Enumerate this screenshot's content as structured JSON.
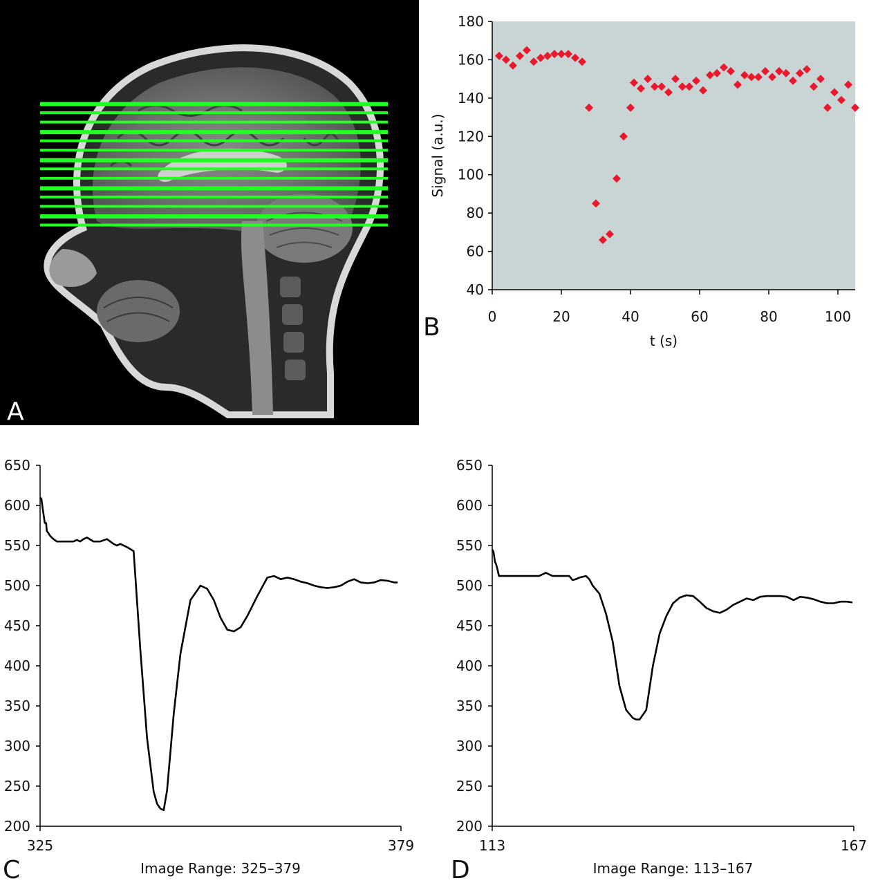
{
  "panels": {
    "a": "A",
    "b": "B",
    "c": "C",
    "d": "D"
  },
  "mri": {
    "image": "sagittal-head-mri",
    "slice_color": "#22ff22",
    "slice_count": 14
  },
  "colors": {
    "plot_bg": "#c9d5d5",
    "marker": "#e8192c",
    "line": "#000000"
  },
  "chart_data": [
    {
      "type": "scatter",
      "panel": "B",
      "xlabel": "t (s)",
      "ylabel": "Signal (a.u.)",
      "xlim": [
        0,
        105
      ],
      "ylim": [
        40,
        180
      ],
      "xticks": [
        0,
        20,
        40,
        60,
        80,
        100
      ],
      "yticks": [
        40,
        60,
        80,
        100,
        120,
        140,
        160,
        180
      ],
      "grid": false,
      "x": [
        2,
        4,
        6,
        8,
        10,
        12,
        14,
        16,
        18,
        20,
        22,
        24,
        26,
        28,
        30,
        32,
        34,
        36,
        38,
        40,
        41,
        43,
        45,
        47,
        49,
        51,
        53,
        55,
        57,
        59,
        61,
        63,
        65,
        67,
        69,
        71,
        73,
        75,
        77,
        79,
        81,
        83,
        85,
        87,
        89,
        91,
        93,
        95,
        97,
        99,
        101,
        103,
        105
      ],
      "y": [
        162,
        160,
        157,
        162,
        165,
        159,
        161,
        162,
        163,
        163,
        163,
        161,
        159,
        135,
        85,
        66,
        69,
        98,
        120,
        135,
        148,
        145,
        150,
        146,
        146,
        143,
        150,
        146,
        146,
        149,
        144,
        152,
        153,
        156,
        154,
        147,
        152,
        151,
        151,
        154,
        151,
        154,
        153,
        149,
        153,
        155,
        146,
        150,
        135,
        143,
        139,
        147,
        135
      ]
    },
    {
      "type": "line",
      "panel": "C",
      "xlabel": "Image Range: 325–379",
      "ylim": [
        200,
        650
      ],
      "yticks": [
        200,
        250,
        300,
        350,
        400,
        450,
        500,
        550,
        600,
        650
      ],
      "xlim": [
        325,
        379
      ],
      "xticks": [
        325,
        379
      ],
      "grid": false,
      "x": [
        325,
        325.2,
        325.4,
        325.5,
        325.7,
        325.9,
        326.0,
        326.2,
        326.5,
        327.0,
        327.5,
        328.0,
        329.0,
        330.0,
        330.5,
        331.0,
        331.5,
        332.0,
        333.0,
        334.0,
        335.0,
        336.0,
        336.5,
        337.0,
        338.0,
        339.0,
        340.0,
        341.0,
        342.0,
        342.5,
        343.0,
        343.5,
        344.0,
        345.0,
        346.0,
        347.5,
        349.0,
        350.0,
        351.0,
        352.0,
        353.0,
        354.0,
        355.0,
        356.0,
        357.5,
        359.0,
        360.0,
        361.0,
        362.0,
        363.0,
        364.0,
        365.0,
        366.0,
        367.0,
        368.0,
        369.0,
        370.0,
        371.0,
        372.0,
        373.0,
        374.0,
        375.0,
        376.0,
        377.0,
        378.0,
        378.5
      ],
      "y": [
        610,
        608,
        595,
        590,
        578,
        578,
        568,
        566,
        562,
        558,
        555,
        555,
        555,
        555,
        557,
        555,
        558,
        560,
        555,
        555,
        558,
        552,
        550,
        552,
        548,
        543,
        420,
        310,
        243,
        228,
        222,
        220,
        245,
        340,
        415,
        482,
        500,
        496,
        482,
        460,
        445,
        443,
        448,
        462,
        487,
        510,
        512,
        508,
        510,
        508,
        505,
        503,
        500,
        498,
        497,
        498,
        500,
        505,
        508,
        504,
        503,
        504,
        507,
        506,
        504,
        504
      ]
    },
    {
      "type": "line",
      "panel": "D",
      "xlabel": "Image Range: 113–167",
      "ylim": [
        200,
        650
      ],
      "yticks": [
        200,
        250,
        300,
        350,
        400,
        450,
        500,
        550,
        600,
        650
      ],
      "xlim": [
        113,
        167
      ],
      "xticks": [
        113,
        167
      ],
      "grid": false,
      "x": [
        113,
        113.2,
        113.4,
        113.6,
        113.8,
        114.0,
        114.5,
        115.0,
        116.0,
        117.0,
        118.0,
        119.0,
        120.0,
        121.0,
        122.0,
        123.0,
        124.0,
        124.5,
        125.0,
        125.5,
        126.0,
        127.0,
        127.5,
        128.0,
        129.0,
        130.0,
        131.0,
        132.0,
        133.0,
        134.0,
        134.5,
        135.0,
        136.0,
        137.0,
        138.0,
        139.0,
        140.0,
        141.0,
        142.0,
        143.0,
        144.0,
        145.0,
        146.0,
        147.0,
        148.0,
        149.0,
        150.0,
        151.0,
        152.0,
        153.0,
        154.0,
        155.0,
        156.0,
        157.0,
        158.0,
        159.0,
        160.0,
        161.0,
        162.0,
        163.0,
        164.0,
        165.0,
        166.0,
        166.8
      ],
      "y": [
        545,
        542,
        530,
        526,
        520,
        512,
        512,
        512,
        512,
        512,
        512,
        512,
        512,
        516,
        512,
        512,
        512,
        512,
        507,
        508,
        510,
        512,
        508,
        500,
        490,
        465,
        430,
        375,
        345,
        335,
        333,
        333,
        345,
        400,
        440,
        462,
        478,
        485,
        488,
        487,
        480,
        472,
        468,
        466,
        470,
        476,
        480,
        484,
        482,
        486,
        487,
        487,
        487,
        486,
        482,
        486,
        485,
        483,
        480,
        478,
        478,
        480,
        480,
        479
      ]
    }
  ]
}
